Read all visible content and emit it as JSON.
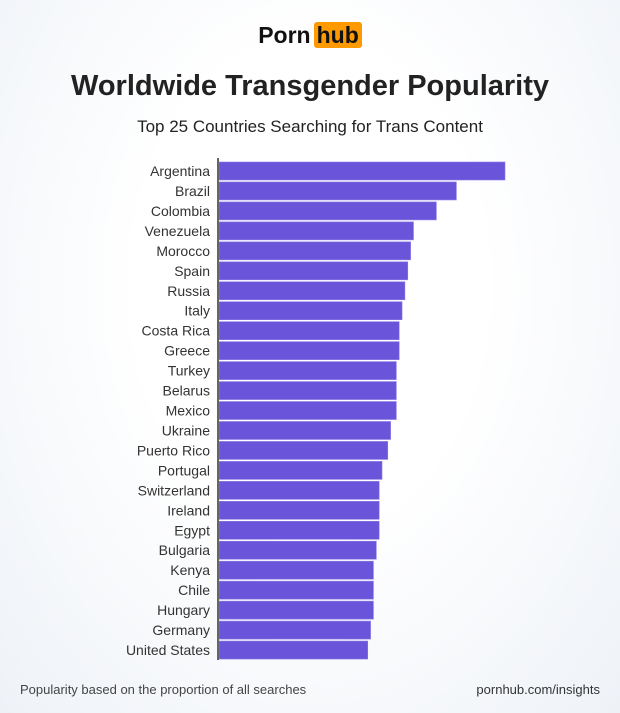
{
  "logo": {
    "part1": "Porn",
    "part2": "hub",
    "accent": "#ff9900"
  },
  "chart_data": {
    "type": "bar",
    "orientation": "horizontal",
    "title": "Worldwide Transgender Popularity",
    "subtitle": "Top 25 Countries Searching for Trans Content",
    "categories": [
      "Argentina",
      "Brazil",
      "Colombia",
      "Venezuela",
      "Morocco",
      "Spain",
      "Russia",
      "Italy",
      "Costa Rica",
      "Greece",
      "Turkey",
      "Belarus",
      "Mexico",
      "Ukraine",
      "Puerto Rico",
      "Portugal",
      "Switzerland",
      "Ireland",
      "Egypt",
      "Bulgaria",
      "Kenya",
      "Chile",
      "Hungary",
      "Germany",
      "United States"
    ],
    "values": [
      100,
      83,
      76,
      68,
      67,
      66,
      65,
      64,
      63,
      63,
      62,
      62,
      62,
      60,
      59,
      57,
      56,
      56,
      56,
      55,
      54,
      54,
      54,
      53,
      52
    ],
    "value_note": "relative bar length, Argentina = 100 (no values printed)",
    "xlim": [
      0,
      100
    ],
    "grid": false,
    "bar_color": "#6a54d9"
  },
  "footer": {
    "note": "Popularity based on the proportion of all searches",
    "source": "pornhub.com/insights"
  }
}
